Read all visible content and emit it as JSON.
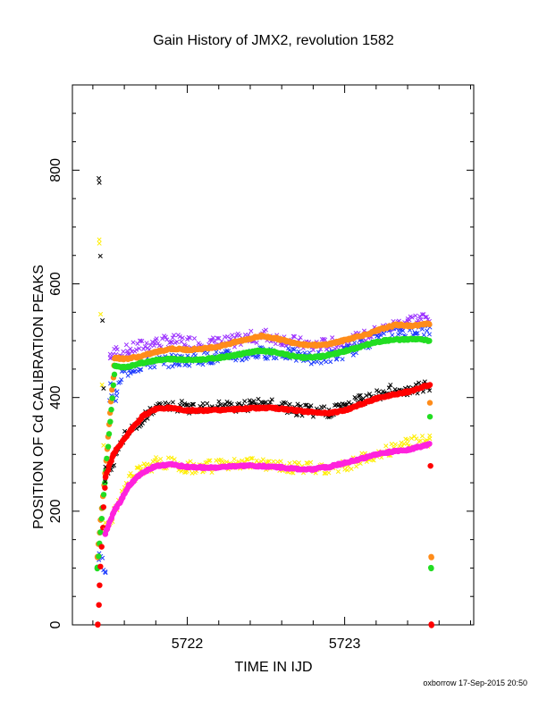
{
  "page": {
    "title": "Gain History of JMX2, revolution 1582",
    "footer": "oxborrow 17-Sep-2015 20:50"
  },
  "chart_data": {
    "type": "scatter",
    "title": "Gain History of JMX2, revolution 1582",
    "xlabel": "TIME IN IJD",
    "ylabel": "POSITION OF Cd CALIBRATION PEAKS",
    "xlim": [
      5721.27,
      5723.82
    ],
    "ylim": [
      0,
      950
    ],
    "x_ticks": [
      5722,
      5723
    ],
    "y_ticks": [
      0,
      200,
      400,
      600,
      800
    ],
    "grid": false,
    "series": [
      {
        "color": "#9b30ff",
        "marker": "x",
        "points": [
          [
            5721.51,
            475
          ],
          [
            5721.55,
            478
          ],
          [
            5721.62,
            483
          ],
          [
            5721.7,
            490
          ],
          [
            5721.8,
            496
          ],
          [
            5721.9,
            500
          ],
          [
            5722.0,
            498
          ],
          [
            5722.1,
            495
          ],
          [
            5722.2,
            496
          ],
          [
            5722.3,
            500
          ],
          [
            5722.4,
            506
          ],
          [
            5722.5,
            508
          ],
          [
            5722.6,
            503
          ],
          [
            5722.7,
            496
          ],
          [
            5722.8,
            492
          ],
          [
            5722.9,
            494
          ],
          [
            5723.0,
            498
          ],
          [
            5723.1,
            505
          ],
          [
            5723.2,
            515
          ],
          [
            5723.3,
            525
          ],
          [
            5723.4,
            535
          ],
          [
            5723.5,
            540
          ],
          [
            5723.54,
            538
          ]
        ]
      },
      {
        "color": "#1e3cff",
        "marker": "x",
        "points": [
          [
            5721.44,
            120
          ],
          [
            5721.48,
            97
          ],
          [
            5721.51,
            420
          ],
          [
            5721.53,
            402
          ],
          [
            5721.55,
            400
          ],
          [
            5721.58,
            440
          ],
          [
            5721.65,
            452
          ],
          [
            5721.75,
            460
          ],
          [
            5721.85,
            464
          ],
          [
            5721.95,
            465
          ],
          [
            5722.05,
            468
          ],
          [
            5722.15,
            470
          ],
          [
            5722.25,
            472
          ],
          [
            5722.35,
            474
          ],
          [
            5722.45,
            478
          ],
          [
            5722.55,
            480
          ],
          [
            5722.65,
            476
          ],
          [
            5722.75,
            470
          ],
          [
            5722.85,
            470
          ],
          [
            5722.95,
            474
          ],
          [
            5723.05,
            485
          ],
          [
            5723.15,
            498
          ],
          [
            5723.25,
            512
          ],
          [
            5723.35,
            518
          ],
          [
            5723.45,
            520
          ],
          [
            5723.54,
            518
          ]
        ]
      },
      {
        "color": "#ff8c1a",
        "marker": "o",
        "points": [
          [
            5721.43,
            120
          ],
          [
            5721.54,
            470
          ],
          [
            5721.6,
            468
          ],
          [
            5721.7,
            472
          ],
          [
            5721.8,
            480
          ],
          [
            5721.9,
            486
          ],
          [
            5722.0,
            484
          ],
          [
            5722.1,
            486
          ],
          [
            5722.2,
            490
          ],
          [
            5722.3,
            497
          ],
          [
            5722.4,
            504
          ],
          [
            5722.47,
            508
          ],
          [
            5722.55,
            505
          ],
          [
            5722.65,
            498
          ],
          [
            5722.75,
            493
          ],
          [
            5722.85,
            492
          ],
          [
            5722.95,
            497
          ],
          [
            5723.05,
            505
          ],
          [
            5723.15,
            512
          ],
          [
            5723.25,
            522
          ],
          [
            5723.33,
            528
          ],
          [
            5723.42,
            526
          ],
          [
            5723.54,
            530
          ],
          [
            5723.55,
            120
          ]
        ]
      },
      {
        "color": "#22dd22",
        "marker": "o",
        "points": [
          [
            5721.43,
            100
          ],
          [
            5721.54,
            455
          ],
          [
            5721.6,
            453
          ],
          [
            5721.7,
            460
          ],
          [
            5721.8,
            466
          ],
          [
            5721.9,
            468
          ],
          [
            5722.0,
            466
          ],
          [
            5722.1,
            467
          ],
          [
            5722.2,
            470
          ],
          [
            5722.3,
            474
          ],
          [
            5722.4,
            480
          ],
          [
            5722.45,
            482
          ],
          [
            5722.55,
            480
          ],
          [
            5722.65,
            474
          ],
          [
            5722.75,
            470
          ],
          [
            5722.85,
            472
          ],
          [
            5722.95,
            478
          ],
          [
            5723.05,
            485
          ],
          [
            5723.15,
            494
          ],
          [
            5723.25,
            500
          ],
          [
            5723.35,
            502
          ],
          [
            5723.45,
            503
          ],
          [
            5723.54,
            500
          ],
          [
            5723.55,
            100
          ]
        ]
      },
      {
        "color": "#000000",
        "marker": "x",
        "points": [
          [
            5721.44,
            775
          ],
          [
            5721.48,
            260
          ],
          [
            5721.55,
            300
          ],
          [
            5721.6,
            330
          ],
          [
            5721.7,
            360
          ],
          [
            5721.8,
            380
          ],
          [
            5721.9,
            384
          ],
          [
            5722.0,
            382
          ],
          [
            5722.1,
            385
          ],
          [
            5722.2,
            386
          ],
          [
            5722.3,
            384
          ],
          [
            5722.4,
            386
          ],
          [
            5722.5,
            388
          ],
          [
            5722.6,
            383
          ],
          [
            5722.7,
            378
          ],
          [
            5722.8,
            375
          ],
          [
            5722.9,
            376
          ],
          [
            5723.0,
            385
          ],
          [
            5723.1,
            395
          ],
          [
            5723.2,
            405
          ],
          [
            5723.3,
            412
          ],
          [
            5723.4,
            415
          ],
          [
            5723.5,
            418
          ],
          [
            5723.54,
            420
          ]
        ]
      },
      {
        "color": "#ff0000",
        "marker": "o",
        "points": [
          [
            5721.43,
            0
          ],
          [
            5721.48,
            260
          ],
          [
            5721.53,
            300
          ],
          [
            5721.58,
            320
          ],
          [
            5721.65,
            345
          ],
          [
            5721.72,
            368
          ],
          [
            5721.8,
            380
          ],
          [
            5721.9,
            382
          ],
          [
            5722.0,
            377
          ],
          [
            5722.1,
            377
          ],
          [
            5722.2,
            378
          ],
          [
            5722.3,
            379
          ],
          [
            5722.4,
            381
          ],
          [
            5722.5,
            382
          ],
          [
            5722.6,
            380
          ],
          [
            5722.7,
            377
          ],
          [
            5722.8,
            374
          ],
          [
            5722.9,
            373
          ],
          [
            5723.0,
            377
          ],
          [
            5723.1,
            388
          ],
          [
            5723.2,
            398
          ],
          [
            5723.3,
            405
          ],
          [
            5723.4,
            410
          ],
          [
            5723.54,
            422
          ],
          [
            5723.55,
            0
          ]
        ]
      },
      {
        "color": "#ffee00",
        "marker": "x",
        "points": [
          [
            5721.44,
            676
          ],
          [
            5721.48,
            158
          ],
          [
            5721.55,
            210
          ],
          [
            5721.62,
            250
          ],
          [
            5721.7,
            272
          ],
          [
            5721.8,
            284
          ],
          [
            5721.9,
            284
          ],
          [
            5722.0,
            278
          ],
          [
            5722.1,
            277
          ],
          [
            5722.2,
            280
          ],
          [
            5722.3,
            282
          ],
          [
            5722.4,
            284
          ],
          [
            5722.5,
            283
          ],
          [
            5722.6,
            280
          ],
          [
            5722.7,
            276
          ],
          [
            5722.8,
            275
          ],
          [
            5722.9,
            276
          ],
          [
            5723.0,
            280
          ],
          [
            5723.1,
            290
          ],
          [
            5723.2,
            300
          ],
          [
            5723.3,
            310
          ],
          [
            5723.4,
            318
          ],
          [
            5723.5,
            325
          ],
          [
            5723.54,
            322
          ]
        ]
      },
      {
        "color": "#ff22dd",
        "marker": "o",
        "points": [
          [
            5721.48,
            160
          ],
          [
            5721.53,
            198
          ],
          [
            5721.58,
            220
          ],
          [
            5721.63,
            245
          ],
          [
            5721.7,
            265
          ],
          [
            5721.8,
            280
          ],
          [
            5721.9,
            282
          ],
          [
            5722.0,
            278
          ],
          [
            5722.1,
            277
          ],
          [
            5722.2,
            277
          ],
          [
            5722.3,
            279
          ],
          [
            5722.4,
            280
          ],
          [
            5722.5,
            279
          ],
          [
            5722.6,
            277
          ],
          [
            5722.7,
            274
          ],
          [
            5722.8,
            274
          ],
          [
            5722.9,
            278
          ],
          [
            5723.0,
            285
          ],
          [
            5723.1,
            292
          ],
          [
            5723.2,
            300
          ],
          [
            5723.3,
            305
          ],
          [
            5723.4,
            308
          ],
          [
            5723.54,
            318
          ]
        ]
      }
    ]
  }
}
